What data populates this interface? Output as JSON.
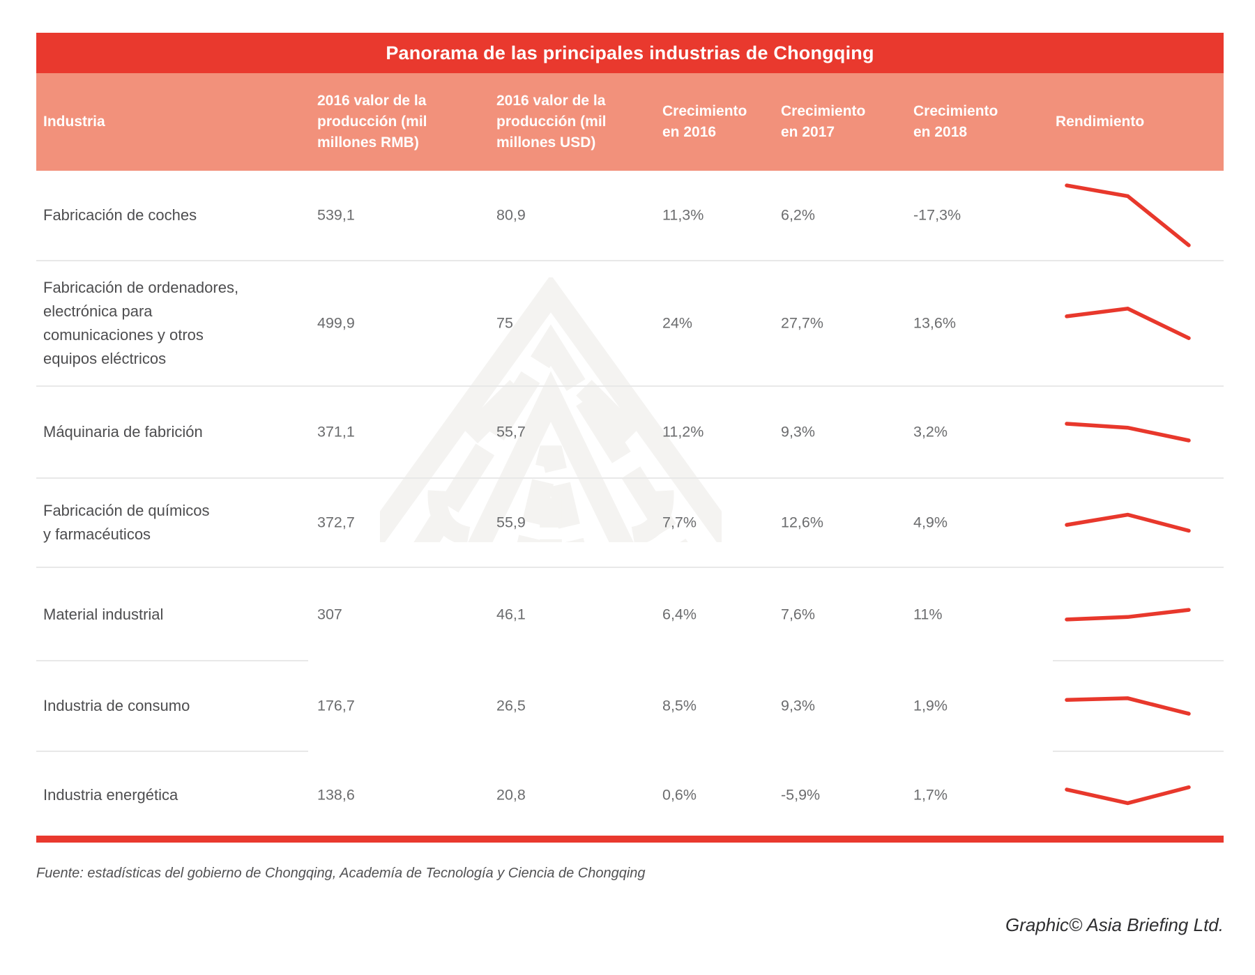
{
  "title": "Panorama de las principales industrias de Chongqing",
  "columns": {
    "industry": "Industria",
    "rmb": "2016 valor de la producción (mil millones RMB)",
    "usd": "2016 valor de la producción (mil millones USD)",
    "g2016": "Crecimiento en 2016",
    "g2017": "Crecimiento en 2017",
    "g2018": "Crecimiento en 2018",
    "rendimiento": "Rendimiento"
  },
  "rows": [
    {
      "industry": "Fabricación de coches",
      "rmb": "539,1",
      "usd": "80,9",
      "g2016": "11,3%",
      "g2017": "6,2%",
      "g2018": "-17,3%",
      "spark": [
        11.3,
        6.2,
        -17.3
      ]
    },
    {
      "industry": "Fabricación de ordenadores,\nelectrónica para\ncomunicaciones y otros\nequipos eléctricos",
      "rmb": "499,9",
      "usd": "75",
      "g2016": "24%",
      "g2017": "27,7%",
      "g2018": "13,6%",
      "spark": [
        24,
        27.7,
        13.6
      ]
    },
    {
      "industry": "Máquinaria de fabrición",
      "rmb": "371,1",
      "usd": "55,7",
      "g2016": "11,2%",
      "g2017": "9,3%",
      "g2018": "3,2%",
      "spark": [
        11.2,
        9.3,
        3.2
      ]
    },
    {
      "industry": "Fabricación de químicos\ny farmacéuticos",
      "rmb": "372,7",
      "usd": "55,9",
      "g2016": "7,7%",
      "g2017": "12,6%",
      "g2018": "4,9%",
      "spark": [
        7.7,
        12.6,
        4.9
      ]
    },
    {
      "industry": "Material industrial",
      "rmb": "307",
      "usd": "46,1",
      "g2016": "6,4%",
      "g2017": "7,6%",
      "g2018": "11%",
      "spark": [
        6.4,
        7.6,
        11
      ]
    },
    {
      "industry": "Industria de consumo",
      "rmb": "176,7",
      "usd": "26,5",
      "g2016": "8,5%",
      "g2017": "9,3%",
      "g2018": "1,9%",
      "spark": [
        8.5,
        9.3,
        1.9
      ]
    },
    {
      "industry": "Industria energética",
      "rmb": "138,6",
      "usd": "20,8",
      "g2016": "0,6%",
      "g2017": "-5,9%",
      "g2018": "1,7%",
      "spark": [
        0.6,
        -5.9,
        1.7
      ]
    }
  ],
  "footer": {
    "source": "Fuente: estadísticas del gobierno de Chongqing, Academía de Tecnología y Ciencia de Chongqing",
    "credit": "Graphic© Asia Briefing Ltd."
  },
  "colors": {
    "red": "#e9392e",
    "salmon": "#f2917b",
    "spark": "#e8382c",
    "divider": "#e8e8e8",
    "text-dark": "#4d4d4f",
    "text-value": "#6b6c6e",
    "watermark": "#f4f3f1",
    "footer-text": "#515153",
    "credit-text": "#2e2e30"
  },
  "chart_data": {
    "type": "table",
    "title": "Panorama de las principales industrias de Chongqing",
    "columns": [
      "Industria",
      "2016 valor de la producción (mil millones RMB)",
      "2016 valor de la producción (mil millones USD)",
      "Crecimiento en 2016",
      "Crecimiento en 2017",
      "Crecimiento en 2018",
      "Rendimiento"
    ],
    "rows": [
      [
        "Fabricación de coches",
        539.1,
        80.9,
        "11,3%",
        "6,2%",
        "-17,3%"
      ],
      [
        "Fabricación de ordenadores, electrónica para comunicaciones y otros equipos eléctricos",
        499.9,
        75,
        "24%",
        "27,7%",
        "13,6%"
      ],
      [
        "Máquinaria de fabrición",
        371.1,
        55.7,
        "11,2%",
        "9,3%",
        "3,2%"
      ],
      [
        "Fabricación de químicos y farmacéuticos",
        372.7,
        55.9,
        "7,7%",
        "12,6%",
        "4,9%"
      ],
      [
        "Material industrial",
        307,
        46.1,
        "6,4%",
        "7,6%",
        "11%"
      ],
      [
        "Industria de consumo",
        176.7,
        26.5,
        "8,5%",
        "9,3%",
        "1,9%"
      ],
      [
        "Industria energética",
        138.6,
        20.8,
        "0,6%",
        "-5,9%",
        "1,7%"
      ]
    ],
    "sparkline_series": {
      "x": [
        2016,
        2017,
        2018
      ],
      "series": [
        {
          "name": "Fabricación de coches",
          "values": [
            11.3,
            6.2,
            -17.3
          ]
        },
        {
          "name": "Fabricación de ordenadores, electrónica para comunicaciones y otros equipos eléctricos",
          "values": [
            24,
            27.7,
            13.6
          ]
        },
        {
          "name": "Máquinaria de fabrición",
          "values": [
            11.2,
            9.3,
            3.2
          ]
        },
        {
          "name": "Fabricación de químicos y farmacéuticos",
          "values": [
            7.7,
            12.6,
            4.9
          ]
        },
        {
          "name": "Material industrial",
          "values": [
            6.4,
            7.6,
            11
          ]
        },
        {
          "name": "Industria de consumo",
          "values": [
            8.5,
            9.3,
            1.9
          ]
        },
        {
          "name": "Industria energética",
          "values": [
            0.6,
            -5.9,
            1.7
          ]
        }
      ],
      "line_color": "#e8382c"
    }
  }
}
